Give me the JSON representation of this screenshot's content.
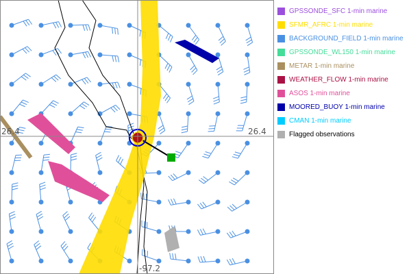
{
  "map": {
    "lat_label_left": "26.4",
    "lat_label_right": "26.4",
    "lon_label_bottom": "-97.2",
    "background_color": "#ffffff",
    "grid_color": "#888888"
  },
  "legend": {
    "items": [
      {
        "label": "GPSSONDE_SFC 1-min marine",
        "color": "#9b4fdd"
      },
      {
        "label": "SFMR_AFRC 1-min marine",
        "color": "#ffdd00"
      },
      {
        "label": "BACKGROUND_FIELD 1-min marine",
        "color": "#4a90e2"
      },
      {
        "label": "GPSSONDE_WL150 1-min marine",
        "color": "#44dd99"
      },
      {
        "label": "METAR 1-min marine",
        "color": "#aa9060"
      },
      {
        "label": "WEATHER_FLOW 1-min marine",
        "color": "#aa1144"
      },
      {
        "label": "ASOS 1-min marine",
        "color": "#e0509a"
      },
      {
        "label": "MOORED_BUOY 1-min marine",
        "color": "#0000aa"
      },
      {
        "label": "CMAN 1-min marine",
        "color": "#00ccff"
      },
      {
        "label": "Flagged observations",
        "color": "#b0b0b0",
        "text_color": "#000000"
      }
    ]
  }
}
